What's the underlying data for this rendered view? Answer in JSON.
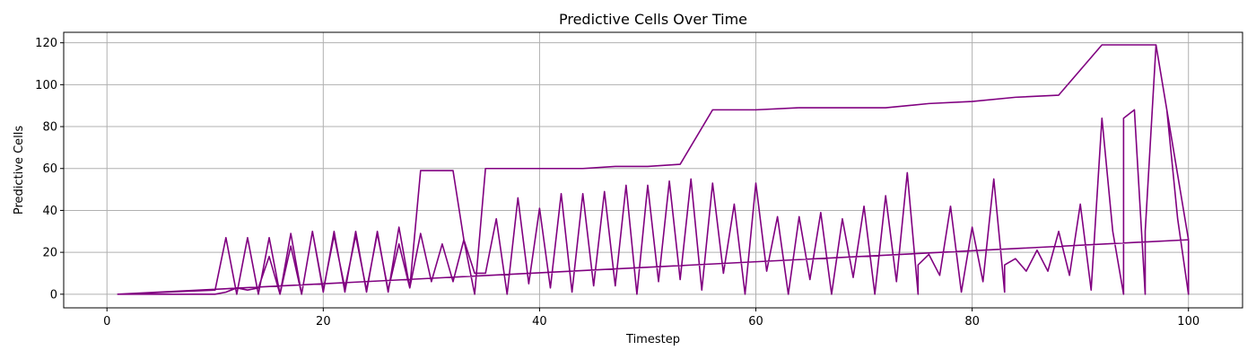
{
  "chart_data": {
    "type": "line",
    "title": "Predictive Cells Over Time",
    "xlabel": "Timestep",
    "ylabel": "Predictive Cells",
    "xlim": [
      -4,
      105
    ],
    "ylim": [
      -6.5,
      125
    ],
    "xticks": [
      0,
      20,
      40,
      60,
      80,
      100
    ],
    "yticks": [
      0,
      20,
      40,
      60,
      80,
      100,
      120
    ],
    "grid": true,
    "color": "#800080",
    "series": [
      {
        "name": "",
        "points": [
          [
            1,
            0
          ],
          [
            10,
            0
          ],
          [
            11,
            1
          ],
          [
            12,
            3
          ],
          [
            13,
            2
          ],
          [
            14,
            3
          ],
          [
            15,
            18
          ],
          [
            16,
            0
          ],
          [
            17,
            23
          ],
          [
            18,
            0
          ],
          [
            19,
            30
          ],
          [
            20,
            2
          ],
          [
            21,
            28
          ],
          [
            22,
            3
          ],
          [
            23,
            28
          ],
          [
            24,
            2
          ],
          [
            25,
            29
          ],
          [
            26,
            2
          ],
          [
            27,
            24
          ],
          [
            28,
            3
          ],
          [
            29,
            29
          ],
          [
            30,
            6
          ],
          [
            31,
            24
          ],
          [
            32,
            6
          ],
          [
            33,
            26
          ],
          [
            34,
            10
          ],
          [
            35,
            10
          ],
          [
            36,
            36
          ],
          [
            37,
            0
          ],
          [
            38,
            46
          ],
          [
            39,
            5
          ],
          [
            40,
            41
          ],
          [
            41,
            3
          ],
          [
            42,
            48
          ],
          [
            43,
            1
          ],
          [
            44,
            48
          ],
          [
            45,
            4
          ],
          [
            46,
            49
          ],
          [
            47,
            4
          ],
          [
            48,
            52
          ],
          [
            49,
            0
          ],
          [
            50,
            52
          ],
          [
            51,
            6
          ],
          [
            52,
            54
          ],
          [
            53,
            7
          ],
          [
            54,
            55
          ],
          [
            55,
            2
          ],
          [
            56,
            53
          ],
          [
            57,
            10
          ],
          [
            58,
            43
          ],
          [
            59,
            0
          ],
          [
            60,
            53
          ],
          [
            61,
            11
          ],
          [
            62,
            37
          ],
          [
            63,
            0
          ],
          [
            64,
            37
          ],
          [
            65,
            7
          ],
          [
            66,
            39
          ],
          [
            67,
            0
          ],
          [
            68,
            36
          ],
          [
            69,
            8
          ],
          [
            70,
            42
          ],
          [
            71,
            0
          ],
          [
            72,
            47
          ],
          [
            73,
            6
          ],
          [
            74,
            58
          ],
          [
            75,
            0
          ],
          [
            75,
            14
          ],
          [
            76,
            19
          ],
          [
            77,
            9
          ],
          [
            78,
            42
          ],
          [
            79,
            1
          ],
          [
            80,
            32
          ],
          [
            81,
            6
          ],
          [
            82,
            55
          ],
          [
            83,
            1
          ],
          [
            83,
            14
          ],
          [
            84,
            17
          ],
          [
            85,
            11
          ],
          [
            86,
            21
          ],
          [
            87,
            11
          ],
          [
            88,
            30
          ],
          [
            89,
            9
          ],
          [
            90,
            43
          ],
          [
            91,
            2
          ],
          [
            92,
            84
          ],
          [
            93,
            30
          ],
          [
            94,
            0
          ],
          [
            94,
            84
          ],
          [
            95,
            88
          ],
          [
            96,
            0
          ],
          [
            96,
            30
          ],
          [
            97,
            119
          ],
          [
            98,
            88
          ],
          [
            99,
            36
          ],
          [
            100,
            0
          ],
          [
            100,
            26
          ],
          [
            1,
            0
          ],
          [
            10,
            2
          ],
          [
            11,
            27
          ],
          [
            12,
            0
          ],
          [
            13,
            27
          ],
          [
            14,
            0
          ],
          [
            15,
            27
          ],
          [
            16,
            0
          ],
          [
            17,
            29
          ],
          [
            18,
            0
          ],
          [
            19,
            30
          ],
          [
            20,
            1
          ],
          [
            21,
            30
          ],
          [
            22,
            1
          ],
          [
            23,
            30
          ],
          [
            24,
            1
          ],
          [
            25,
            30
          ],
          [
            26,
            1
          ],
          [
            27,
            32
          ],
          [
            28,
            3
          ],
          [
            29,
            59
          ],
          [
            32,
            59
          ],
          [
            33,
            26
          ],
          [
            34,
            0
          ],
          [
            35,
            60
          ],
          [
            38,
            60
          ],
          [
            41,
            60
          ],
          [
            44,
            60
          ],
          [
            47,
            61
          ],
          [
            50,
            61
          ],
          [
            53,
            62
          ],
          [
            56,
            88
          ],
          [
            60,
            88
          ],
          [
            64,
            89
          ],
          [
            68,
            89
          ],
          [
            72,
            89
          ],
          [
            76,
            91
          ],
          [
            80,
            92
          ],
          [
            84,
            94
          ],
          [
            88,
            95
          ],
          [
            92,
            119
          ],
          [
            97,
            119
          ],
          [
            100,
            26
          ]
        ]
      }
    ]
  }
}
